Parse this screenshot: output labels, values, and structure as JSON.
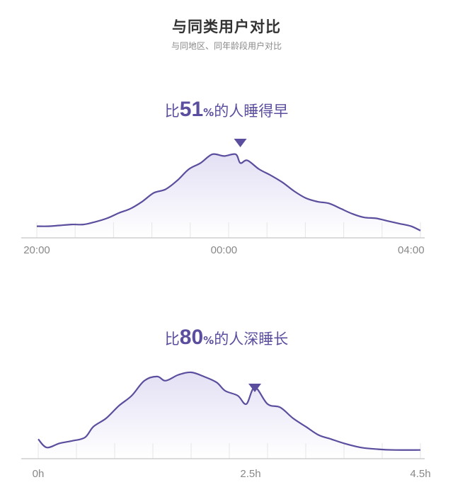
{
  "header": {
    "title": "与同类用户对比",
    "subtitle": "与同地区、同年龄段用户对比"
  },
  "colors": {
    "accent": "#5b4e9e",
    "fill_top": "#e3e0f4",
    "axis": "#cfcfcf",
    "tick_text": "#888888"
  },
  "chart_data": [
    {
      "type": "area",
      "headline_prefix": "比",
      "headline_value": "51",
      "headline_percent": "%",
      "headline_suffix": "的人睡得早",
      "x_tick_labels": [
        "20:00",
        "00:00",
        "04:00"
      ],
      "x_tick_positions": [
        -4,
        0,
        4
      ],
      "x_unit": "hours relative to 00:00",
      "xlim": [
        -4,
        4.2
      ],
      "ylim": [
        0,
        1
      ],
      "marker_x": 0.35,
      "x": [
        -4,
        -3.75,
        -3.5,
        -3.25,
        -3,
        -2.75,
        -2.5,
        -2.25,
        -2,
        -1.75,
        -1.5,
        -1.25,
        -1,
        -0.75,
        -0.5,
        -0.25,
        0,
        0.25,
        0.35,
        0.5,
        0.75,
        1,
        1.25,
        1.5,
        1.75,
        2,
        2.25,
        2.5,
        2.75,
        3,
        3.25,
        3.5,
        3.75,
        4,
        4.2
      ],
      "y": [
        0.1,
        0.1,
        0.11,
        0.12,
        0.12,
        0.15,
        0.19,
        0.25,
        0.3,
        0.38,
        0.48,
        0.52,
        0.62,
        0.75,
        0.82,
        0.92,
        0.9,
        0.92,
        0.82,
        0.85,
        0.75,
        0.68,
        0.6,
        0.5,
        0.42,
        0.38,
        0.36,
        0.3,
        0.24,
        0.2,
        0.19,
        0.16,
        0.13,
        0.1,
        0.05
      ]
    },
    {
      "type": "area",
      "headline_prefix": "比",
      "headline_value": "80",
      "headline_percent": "%",
      "headline_suffix": "的人深睡长",
      "x_tick_labels": [
        "0h",
        "2.5h",
        "4.5h"
      ],
      "x_tick_positions": [
        0,
        2.5,
        4.5
      ],
      "x_unit": "hours",
      "xlim": [
        0,
        4.5
      ],
      "ylim": [
        0,
        1
      ],
      "marker_x": 2.55,
      "x": [
        0,
        0.1,
        0.25,
        0.4,
        0.55,
        0.65,
        0.8,
        0.95,
        1.1,
        1.25,
        1.4,
        1.5,
        1.65,
        1.8,
        1.95,
        2.1,
        2.2,
        2.35,
        2.45,
        2.55,
        2.7,
        2.85,
        3.0,
        3.15,
        3.3,
        3.45,
        3.6,
        3.8,
        4.0,
        4.2,
        4.5
      ],
      "y": [
        0.2,
        0.1,
        0.15,
        0.18,
        0.22,
        0.35,
        0.45,
        0.6,
        0.72,
        0.9,
        0.95,
        0.9,
        0.97,
        1.0,
        0.95,
        0.88,
        0.78,
        0.72,
        0.62,
        0.82,
        0.62,
        0.58,
        0.45,
        0.35,
        0.25,
        0.2,
        0.15,
        0.1,
        0.08,
        0.07,
        0.07
      ]
    }
  ]
}
